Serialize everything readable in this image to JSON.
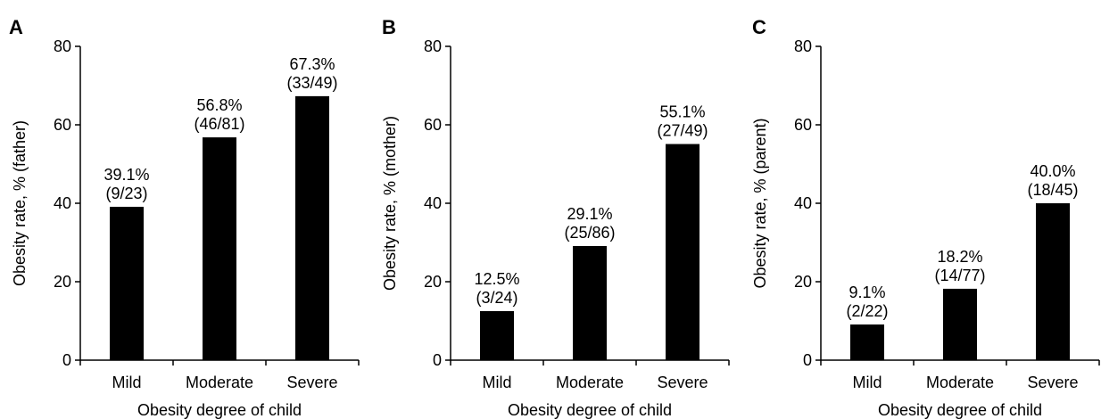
{
  "chart_data": [
    {
      "type": "bar",
      "panel": "A",
      "categories": [
        "Mild",
        "Moderate",
        "Severe"
      ],
      "values": [
        39.1,
        56.8,
        67.3
      ],
      "data_labels": [
        [
          "39.1%",
          "(9/23)"
        ],
        [
          "56.8%",
          "(46/81)"
        ],
        [
          "67.3%",
          "(33/49)"
        ]
      ],
      "xlabel": "Obesity degree of child",
      "ylabel": "Obesity rate, % (father)",
      "ylim": [
        0,
        80
      ],
      "yticks": [
        0,
        20,
        40,
        60,
        80
      ],
      "grid": false,
      "bar_color": "#000000"
    },
    {
      "type": "bar",
      "panel": "B",
      "categories": [
        "Mild",
        "Moderate",
        "Severe"
      ],
      "values": [
        12.5,
        29.1,
        55.1
      ],
      "data_labels": [
        [
          "12.5%",
          "(3/24)"
        ],
        [
          "29.1%",
          "(25/86)"
        ],
        [
          "55.1%",
          "(27/49)"
        ]
      ],
      "xlabel": "Obesity degree of child",
      "ylabel": "Obesity rate, % (mother)",
      "ylim": [
        0,
        80
      ],
      "yticks": [
        0,
        20,
        40,
        60,
        80
      ],
      "grid": false,
      "bar_color": "#000000"
    },
    {
      "type": "bar",
      "panel": "C",
      "categories": [
        "Mild",
        "Moderate",
        "Severe"
      ],
      "values": [
        9.1,
        18.2,
        40.0
      ],
      "data_labels": [
        [
          "9.1%",
          "(2/22)"
        ],
        [
          "18.2%",
          "(14/77)"
        ],
        [
          "40.0%",
          "(18/45)"
        ]
      ],
      "xlabel": "Obesity degree of child",
      "ylabel": "Obesity rate, % (parent)",
      "ylim": [
        0,
        80
      ],
      "yticks": [
        0,
        20,
        40,
        60,
        80
      ],
      "grid": false,
      "bar_color": "#000000"
    }
  ]
}
